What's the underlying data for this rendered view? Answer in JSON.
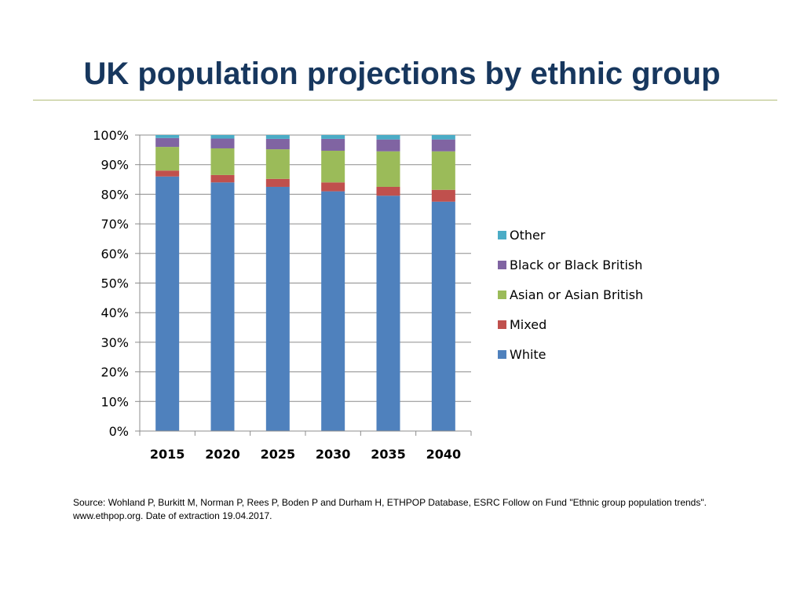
{
  "slide": {
    "title": "UK population projections by ethnic group",
    "source": "Source: Wohland P, Burkitt M, Norman P, Rees P, Boden P and Durham H, ETHPOP Database, ESRC Follow on Fund \"Ethnic group population trends\". www.ethpop.org. Date of extraction 19.04.2017."
  },
  "chart_data": {
    "type": "bar",
    "stacked": true,
    "percent_stacked": true,
    "categories": [
      "2015",
      "2020",
      "2025",
      "2030",
      "2035",
      "2040"
    ],
    "series": [
      {
        "name": "White",
        "color": "#4f81bd",
        "values": [
          86,
          84,
          82.5,
          81,
          79.5,
          77.5
        ]
      },
      {
        "name": "Mixed",
        "color": "#c0504d",
        "values": [
          2,
          2.5,
          2.7,
          3,
          3,
          4
        ]
      },
      {
        "name": "Asian or Asian British",
        "color": "#9bbb59",
        "values": [
          8,
          9,
          10,
          10.7,
          12,
          13
        ]
      },
      {
        "name": "Black or Black British",
        "color": "#8064a2",
        "values": [
          3,
          3.3,
          3.5,
          4,
          4,
          4
        ]
      },
      {
        "name": "Other",
        "color": "#4bacc6",
        "values": [
          1,
          1.2,
          1.3,
          1.3,
          1.5,
          1.5
        ]
      }
    ],
    "y_ticks": [
      "0%",
      "10%",
      "20%",
      "30%",
      "40%",
      "50%",
      "60%",
      "70%",
      "80%",
      "90%",
      "100%"
    ],
    "ylim": [
      0,
      100
    ],
    "grid": true,
    "legend_position": "right",
    "legend_order": [
      "Other",
      "Black or Black British",
      "Asian or Asian British",
      "Mixed",
      "White"
    ]
  }
}
